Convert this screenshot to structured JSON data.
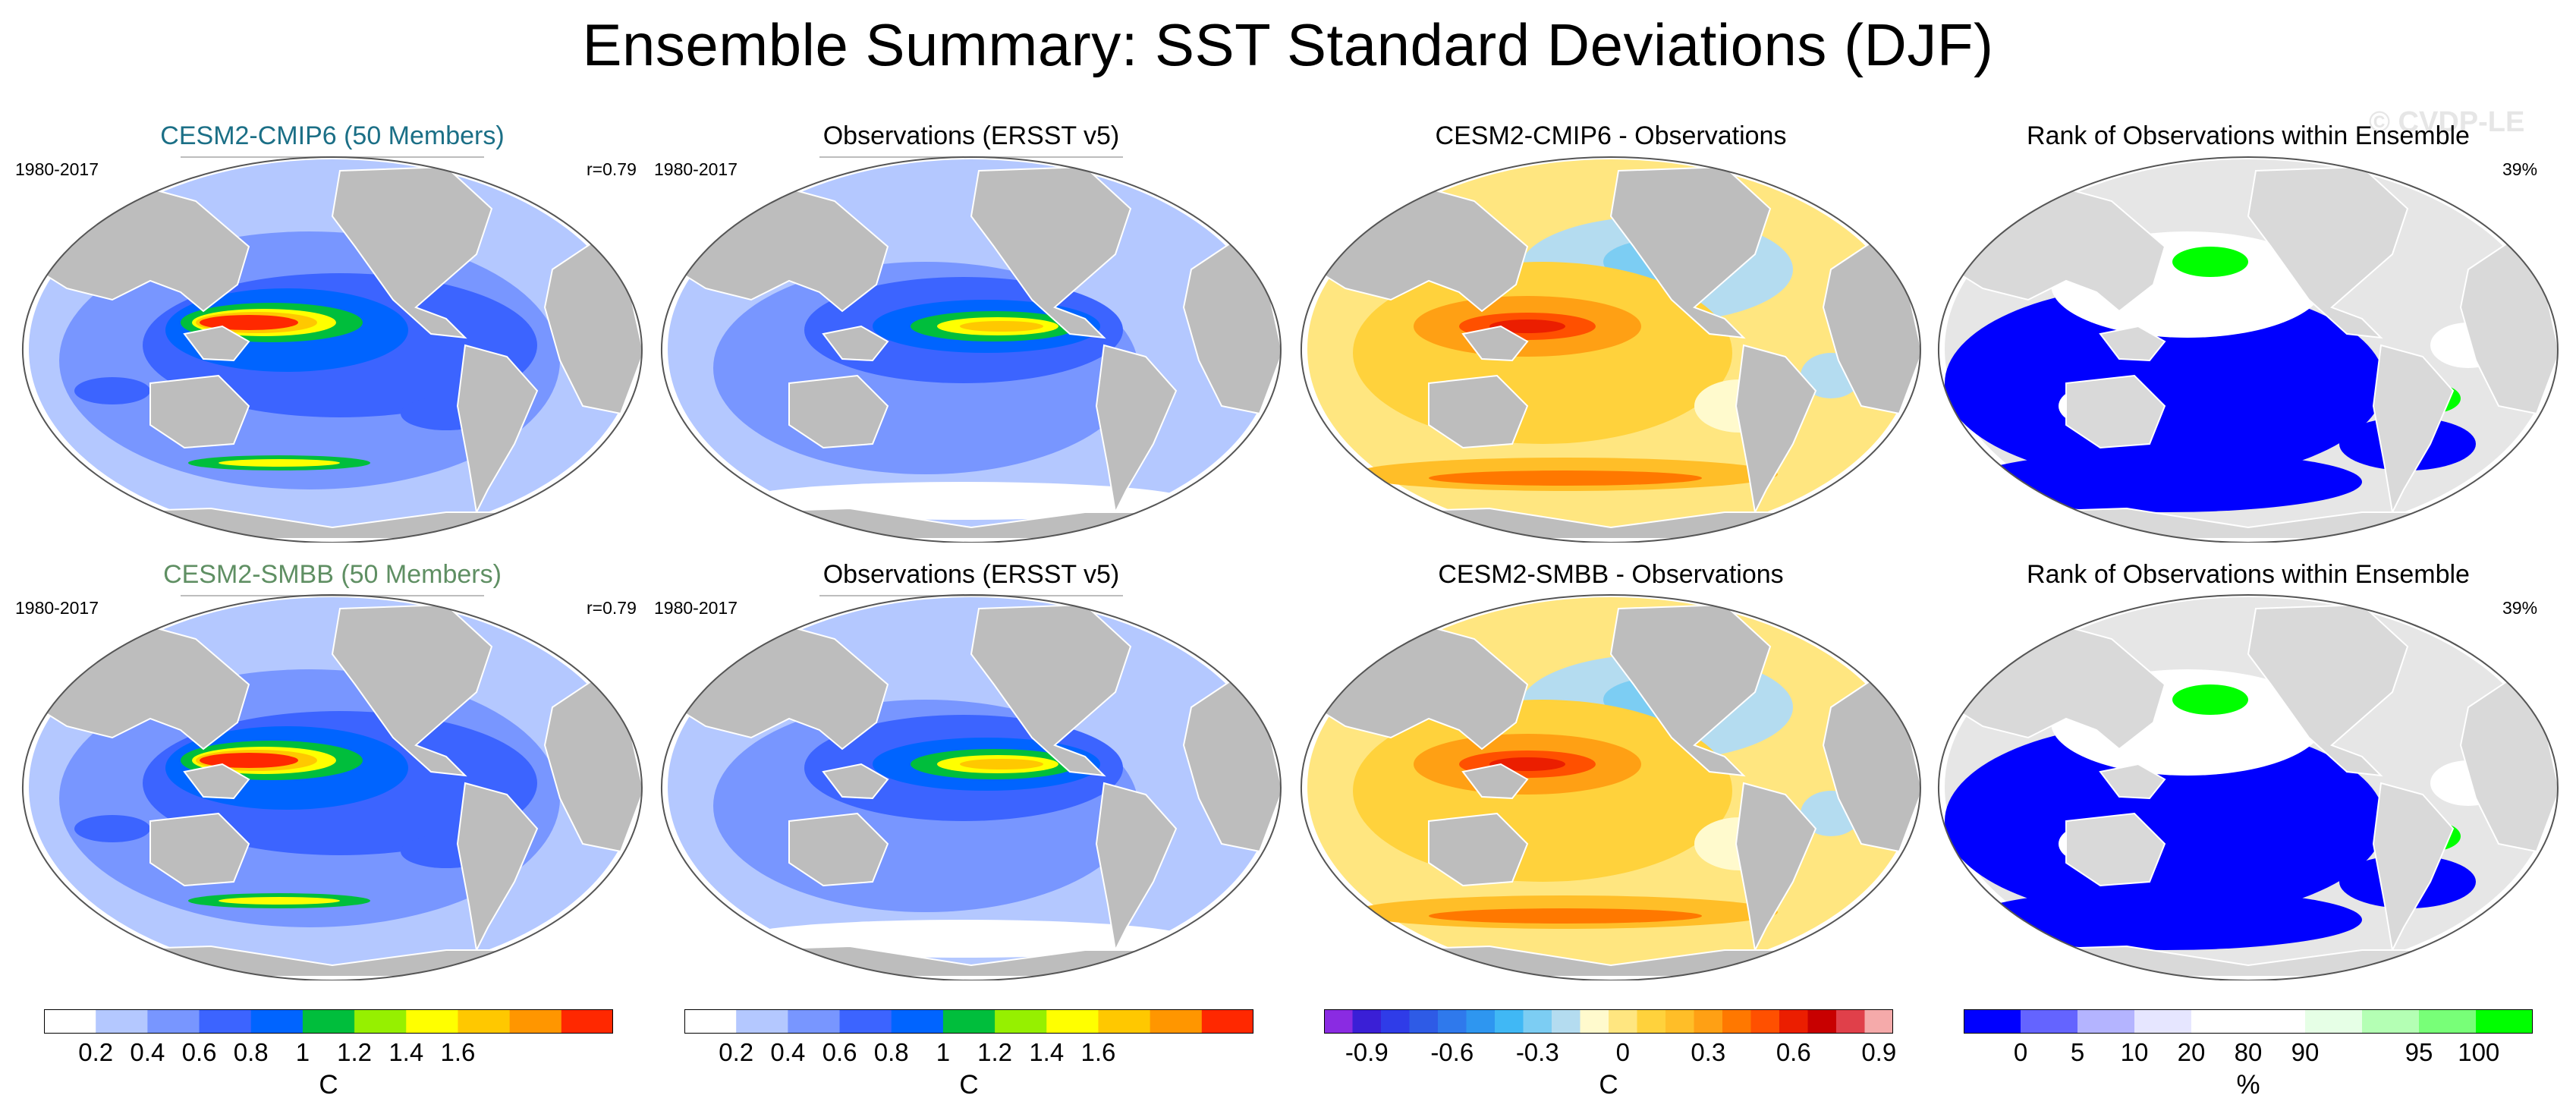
{
  "title": "Ensemble Summary: SST Standard Deviations (DJF)",
  "watermark": "© CVDP-LE",
  "rows": [
    {
      "panels": [
        {
          "title": "CESM2-CMIP6 (50 Members)",
          "left": "1980-2017",
          "right": "r=0.79",
          "kind": "model"
        },
        {
          "title": "Observations (ERSST v5)",
          "left": "1980-2017",
          "right": "",
          "kind": "obs"
        },
        {
          "title": "CESM2-CMIP6 - Observations",
          "left": "",
          "right": "",
          "kind": "diff"
        },
        {
          "title": "Rank of Observations within Ensemble",
          "left": "",
          "right": "39%",
          "kind": "rank"
        }
      ]
    },
    {
      "panels": [
        {
          "title": "CESM2-SMBB (50 Members)",
          "left": "1980-2017",
          "right": "r=0.79",
          "kind": "model"
        },
        {
          "title": "Observations (ERSST v5)",
          "left": "1980-2017",
          "right": "",
          "kind": "obs"
        },
        {
          "title": "CESM2-SMBB - Observations",
          "left": "",
          "right": "",
          "kind": "diff"
        },
        {
          "title": "Rank of Observations within Ensemble",
          "left": "",
          "right": "39%",
          "kind": "rank"
        }
      ]
    }
  ],
  "colorbars": [
    {
      "unit": "C",
      "colors": [
        "#ffffff",
        "#b4c8ff",
        "#7896ff",
        "#3c64ff",
        "#0064ff",
        "#00be3c",
        "#96f000",
        "#ffff00",
        "#ffc800",
        "#ff9600",
        "#ff2800"
      ],
      "ticks": [
        "0.2",
        "0.4",
        "0.6",
        "0.8",
        "1",
        "1.2",
        "1.4",
        "1.6"
      ]
    },
    {
      "unit": "C",
      "colors": [
        "#ffffff",
        "#b4c8ff",
        "#7896ff",
        "#3c64ff",
        "#0064ff",
        "#00be3c",
        "#96f000",
        "#ffff00",
        "#ffc800",
        "#ff9600",
        "#ff2800"
      ],
      "ticks": [
        "0.2",
        "0.4",
        "0.6",
        "0.8",
        "1",
        "1.2",
        "1.4",
        "1.6"
      ]
    },
    {
      "unit": "C",
      "colors": [
        "#8a2be2",
        "#3a1fd6",
        "#2f3ce8",
        "#2e5be6",
        "#2f79ec",
        "#2e96f0",
        "#40b8f5",
        "#7ccdf3",
        "#b4dcf0",
        "#fffacd",
        "#ffe680",
        "#ffd23c",
        "#ffbe28",
        "#ffa014",
        "#ff7800",
        "#ff5000",
        "#eb1e00",
        "#c80000",
        "#e0404a",
        "#f5aaaa"
      ],
      "ticks": [
        "-0.9",
        "-0.6",
        "-0.3",
        "0",
        "0.3",
        "0.6",
        "0.9"
      ]
    },
    {
      "unit": "%",
      "colors": [
        "#0000ff",
        "#6464ff",
        "#b4b4ff",
        "#e6e6ff",
        "#ffffff",
        "#ffffff",
        "#e6ffe6",
        "#b4ffb4",
        "#78ff78",
        "#00ff00"
      ],
      "ticks": [
        "0",
        "5",
        "10",
        "20",
        "80",
        "90",
        "95",
        "100"
      ]
    }
  ]
}
